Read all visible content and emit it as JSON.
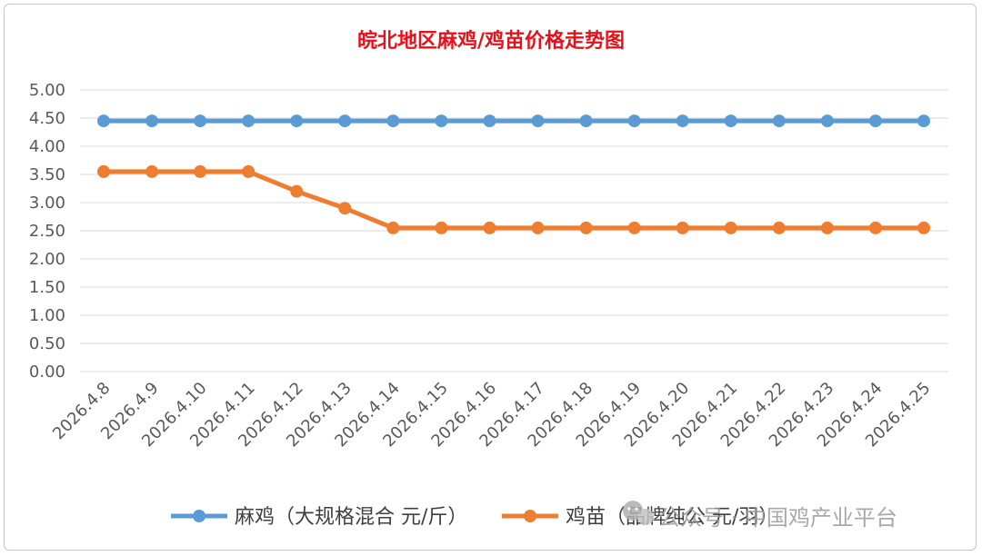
{
  "chart_data": {
    "type": "line",
    "title": "皖北地区麻鸡/鸡苗价格走势图",
    "x": [
      "2026.4.8",
      "2026.4.9",
      "2026.4.10",
      "2026.4.11",
      "2026.4.12",
      "2026.4.13",
      "2026.4.14",
      "2026.4.15",
      "2026.4.16",
      "2026.4.17",
      "2026.4.18",
      "2026.4.19",
      "2026.4.20",
      "2026.4.21",
      "2026.4.22",
      "2026.4.23",
      "2026.4.24",
      "2026.4.25"
    ],
    "series": [
      {
        "name": "麻鸡（大规格混合 元/斤）",
        "color": "#5b9bd5",
        "values": [
          4.45,
          4.45,
          4.45,
          4.45,
          4.45,
          4.45,
          4.45,
          4.45,
          4.45,
          4.45,
          4.45,
          4.45,
          4.45,
          4.45,
          4.45,
          4.45,
          4.45,
          4.45
        ]
      },
      {
        "name": "鸡苗（品牌纯公 元/羽）",
        "color": "#ed7d31",
        "values": [
          3.55,
          3.55,
          3.55,
          3.55,
          3.2,
          2.9,
          2.55,
          2.55,
          2.55,
          2.55,
          2.55,
          2.55,
          2.55,
          2.55,
          2.55,
          2.55,
          2.55,
          2.55
        ]
      }
    ],
    "yticks": [
      "0.00",
      "0.50",
      "1.00",
      "1.50",
      "2.00",
      "2.50",
      "3.00",
      "3.50",
      "4.00",
      "4.50",
      "5.00"
    ],
    "ylim": [
      0,
      5
    ],
    "grid": true,
    "legend": "bottom"
  },
  "watermark": {
    "text": "公众号 · 中国鸡产业平台"
  }
}
